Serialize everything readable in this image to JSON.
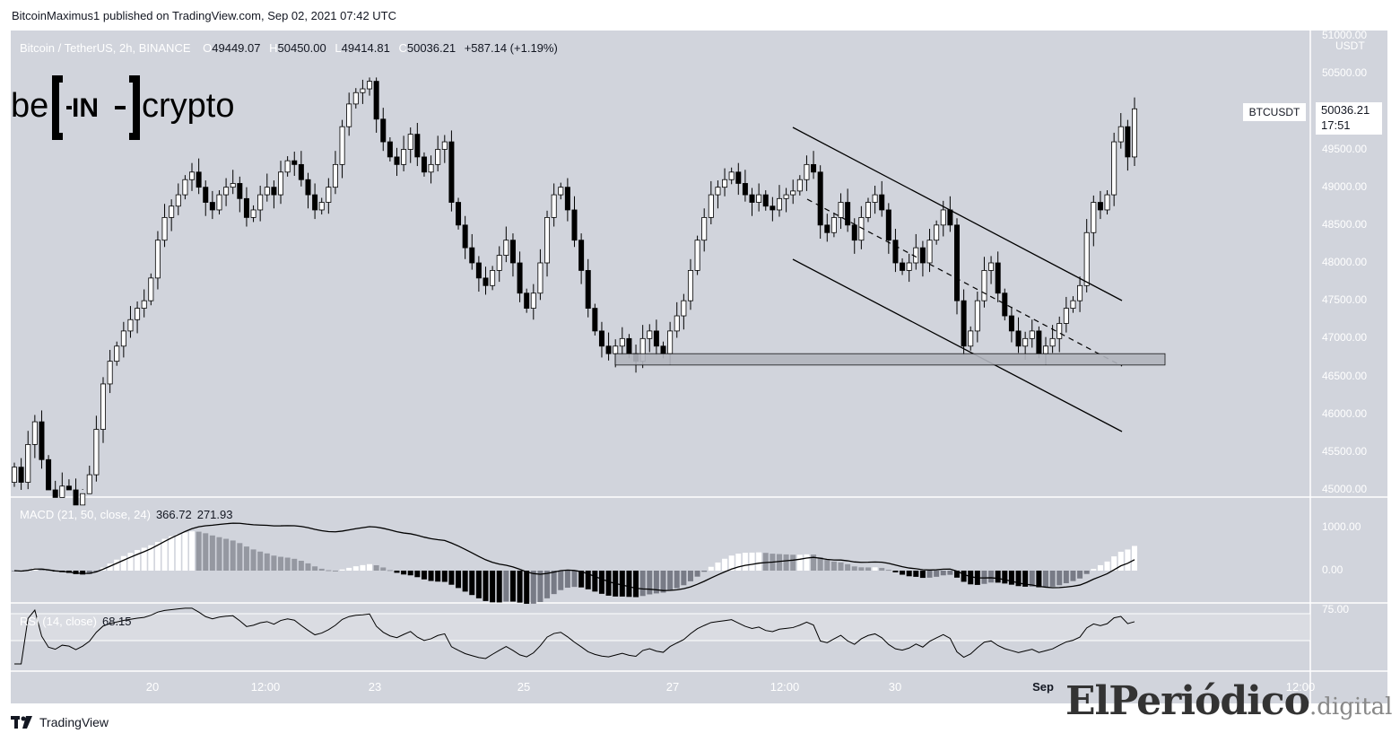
{
  "publisher": "BitcoinMaximus1 published on TradingView.com, Sep 02, 2021 07:42 UTC",
  "legend": {
    "symbol": "Bitcoin / TetherUS, 2h, BINANCE",
    "open_label": "O",
    "open": "49449.07",
    "high_label": "H",
    "high": "50450.00",
    "low_label": "L",
    "low": "49414.81",
    "close_label": "C",
    "close": "50036.21",
    "change": "+587.14 (+1.19%)"
  },
  "price_axis": {
    "currency": "USDT",
    "ticks": [
      "51000.00",
      "50500.00",
      "50000.00",
      "49500.00",
      "49000.00",
      "48500.00",
      "48000.00",
      "47500.00",
      "47000.00",
      "46500.00",
      "46000.00",
      "45500.00",
      "45000.00"
    ],
    "symbol_tag": "BTCUSDT",
    "last_price": "50036.21",
    "countdown": "17:51"
  },
  "time_axis": {
    "ticks": [
      "20",
      "12:00",
      "23",
      "25",
      "27",
      "12:00",
      "30",
      "Sep",
      "12:00"
    ]
  },
  "macd": {
    "title": "MACD (21, 50, close, 24)",
    "value1": "366.72",
    "value2": "271.93",
    "ticks": [
      "1000.00",
      "0.00"
    ]
  },
  "rsi": {
    "title": "RSI (14, close)",
    "value": "68.15",
    "ticks": [
      "75.00"
    ]
  },
  "watermark_left": "be[IN]crypto",
  "watermark_right": {
    "main": "ElPeriódico",
    "suffix": ".digital"
  },
  "footer_brand": "TradingView",
  "colors": {
    "background": "#d1d4dc",
    "up_candle": "#ffffff",
    "down_candle": "#000000",
    "line": "#131722"
  },
  "chart_data": [
    {
      "type": "candlestick",
      "title": "Bitcoin / TetherUS, 2h, BINANCE",
      "ylim": [
        45000,
        51000
      ],
      "x_ticks": [
        "20",
        "12:00",
        "23",
        "25",
        "27",
        "12:00",
        "30",
        "Sep",
        "12:00"
      ],
      "close_series": [
        45300,
        45100,
        45600,
        45900,
        45400,
        45000,
        44900,
        45050,
        45000,
        44800,
        44950,
        45200,
        45800,
        46400,
        46700,
        46900,
        47100,
        47250,
        47400,
        47500,
        47800,
        48300,
        48600,
        48750,
        48900,
        49100,
        49200,
        49000,
        48800,
        48700,
        48900,
        49000,
        49050,
        48850,
        48600,
        48700,
        48900,
        49000,
        48900,
        49200,
        49350,
        49300,
        49100,
        48900,
        48700,
        48800,
        49000,
        49300,
        49800,
        50100,
        50250,
        50300,
        50400,
        49900,
        49600,
        49400,
        49300,
        49500,
        49700,
        49400,
        49200,
        49300,
        49500,
        49600,
        48800,
        48500,
        48200,
        48000,
        47800,
        47700,
        47900,
        48100,
        48300,
        48000,
        47600,
        47400,
        47600,
        48000,
        48600,
        48900,
        49000,
        48700,
        48300,
        47900,
        47400,
        47100,
        46900,
        46800,
        46900,
        47000,
        46800,
        46700,
        47000,
        47100,
        46900,
        46800,
        47100,
        47300,
        47500,
        47900,
        48300,
        48600,
        48900,
        49000,
        49100,
        49200,
        49050,
        48900,
        48800,
        48900,
        48750,
        48700,
        48850,
        48900,
        48950,
        49100,
        49300,
        49200,
        48500,
        48400,
        48600,
        48800,
        48500,
        48300,
        48600,
        48800,
        48900,
        48700,
        48300,
        48000,
        47900,
        48000,
        48200,
        48000,
        48300,
        48500,
        48700,
        48500,
        47500,
        46900,
        47100,
        47500,
        47900,
        48000,
        47600,
        47300,
        47100,
        46900,
        47000,
        47100,
        46800,
        46900,
        47000,
        47200,
        47400,
        47500,
        47700,
        48400,
        48800,
        48700,
        48900,
        49600,
        49800,
        49400,
        50036
      ],
      "annotations": {
        "channel_upper": [
          [
            49600,
            "start"
          ],
          [
            47500,
            "end"
          ]
        ],
        "channel_lower": [
          [
            48050,
            "start"
          ],
          [
            45800,
            "end"
          ]
        ],
        "support_zone": [
          46650,
          46800
        ]
      }
    },
    {
      "type": "bar",
      "title": "MACD (21, 50, close, 24)",
      "ylim": [
        -300,
        1200
      ],
      "macd_line_last": 366.72,
      "signal_last": 271.93
    },
    {
      "type": "line",
      "title": "RSI (14, close)",
      "ylim": [
        25,
        80
      ],
      "last": 68.15
    }
  ]
}
